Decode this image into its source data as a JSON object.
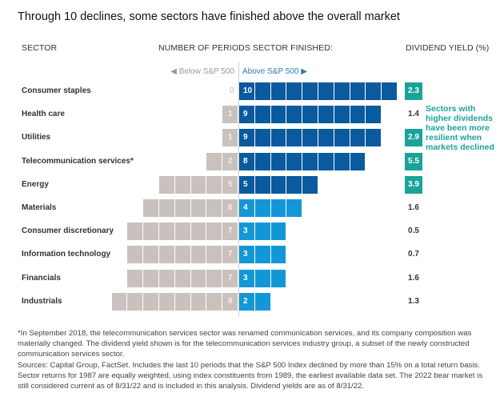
{
  "title": "Through 10 declines, some sectors have finished above the overall market",
  "headers": {
    "sector": "SECTOR",
    "periods": "NUMBER OF PERIODS SECTOR FINISHED:",
    "yield": "DIVIDEND YIELD (%)"
  },
  "legend": {
    "below": "◀ Below S&P 500",
    "above": "Above S&P 500 ▶"
  },
  "annotation": "Sectors with higher dividends have been more resilient when markets declined",
  "colors": {
    "below": "#c9c1bd",
    "above_dark": "#0a5a9e",
    "above_light": "#1497d6",
    "yield_highlight": "#1aa39a"
  },
  "chart_data": {
    "type": "bar",
    "title": "Through 10 declines, some sectors have finished above the overall market",
    "xlabel": "Number of periods sector finished",
    "ylabel": "Sector",
    "total_periods": 10,
    "categories": [
      "Consumer staples",
      "Health care",
      "Utilities",
      "Telecommunication services*",
      "Energy",
      "Materials",
      "Consumer discretionary",
      "Information technology",
      "Financials",
      "Industrials"
    ],
    "series": [
      {
        "name": "Below S&P 500",
        "values": [
          0,
          1,
          1,
          2,
          5,
          6,
          7,
          7,
          7,
          8
        ]
      },
      {
        "name": "Above S&P 500",
        "values": [
          10,
          9,
          9,
          8,
          5,
          4,
          3,
          3,
          3,
          2
        ]
      }
    ],
    "dividend_yield": [
      2.3,
      1.4,
      2.9,
      5.5,
      3.9,
      1.6,
      0.5,
      0.7,
      1.6,
      1.3
    ],
    "dividend_yield_highlighted": [
      true,
      false,
      true,
      true,
      true,
      false,
      false,
      false,
      false,
      false
    ],
    "above_shade": [
      "dark",
      "dark",
      "dark",
      "dark",
      "dark",
      "light",
      "light",
      "light",
      "light",
      "light"
    ]
  },
  "footnote": [
    "*In September 2018, the telecommunication services sector was renamed communication services, and its company composition was materially changed. The dividend yield shown is for the telecommunication services industry group, a subset of the newly constructed communication services sector.",
    "Sources: Capital Group, FactSet. Includes the last 10 periods that the S&P 500 Index declined by more than 15% on a total return basis. Sector returns for 1987 are equally weighted, using index constituents from 1989, the earliest available data set. The 2022 bear market is still considered current as of 8/31/22 and is included in this analysis. Dividend yields are as of 8/31/22."
  ]
}
